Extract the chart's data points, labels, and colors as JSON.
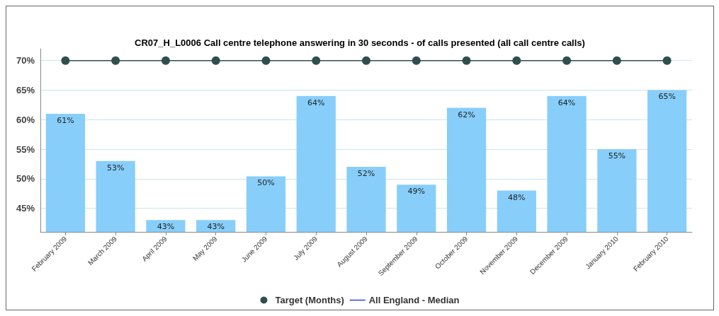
{
  "chart_data": {
    "type": "bar",
    "title": "CR07_H_L0006 Call centre telephone answering in 30 seconds - of calls presented (all call centre calls)",
    "categories": [
      "February 2009",
      "March 2009",
      "April 2009",
      "May 2009",
      "June 2009",
      "July 2009",
      "August 2009",
      "September 2009",
      "October 2009",
      "November 2009",
      "December 2009",
      "January 2010",
      "February 2010"
    ],
    "series": [
      {
        "color": "#87cefa",
        "values": [
          61,
          53,
          43,
          43,
          50.4,
          64,
          52,
          49,
          62,
          48,
          64,
          55,
          65
        ],
        "value_labels": [
          "61%",
          "53%",
          "43%",
          "43%",
          "50%",
          "64%",
          "52%",
          "49%",
          "62%",
          "48%",
          "64%",
          "55%",
          "65%"
        ]
      },
      {
        "type": "line",
        "name": "Target (Months)",
        "color": "#2f4f4f",
        "marker": "circle",
        "values": [
          70,
          70,
          70,
          70,
          70,
          70,
          70,
          70,
          70,
          70,
          70,
          70,
          70
        ]
      },
      {
        "type": "line",
        "name": "All England - Median",
        "color": "#0000ff",
        "marker": "none",
        "values": [
          null,
          null,
          null,
          null,
          null,
          null,
          null,
          null,
          null,
          null,
          null,
          null,
          null
        ]
      }
    ],
    "ylim": [
      41,
      72
    ],
    "yticks": [
      {
        "value": 45,
        "label": "45%"
      },
      {
        "value": 50,
        "label": "50%"
      },
      {
        "value": 55,
        "label": "55%"
      },
      {
        "value": 60,
        "label": "60%"
      },
      {
        "value": 65,
        "label": "65%"
      },
      {
        "value": 70,
        "label": "70%"
      }
    ],
    "grid": "y",
    "legend": "bottom"
  }
}
